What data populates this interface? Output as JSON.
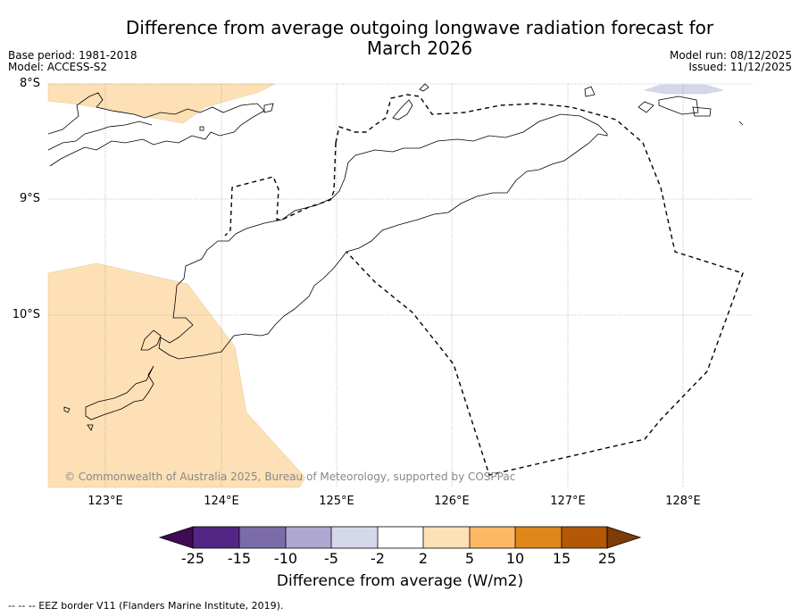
{
  "title": "Difference from average outgoing longwave radiation forecast for March 2026",
  "title_lines": [
    "Difference from average outgoing longwave radiation forecast for",
    "March 2026"
  ],
  "meta_left": [
    "Base period: 1981-2018",
    "Model: ACCESS-S2"
  ],
  "meta_right": [
    "Model run: 08/12/2025",
    "Issued: 11/12/2025"
  ],
  "map": {
    "lat_labels": [
      "8°S",
      "9°S",
      "10°S"
    ],
    "lon_labels": [
      "123°E",
      "124°E",
      "125°E",
      "126°E",
      "127°E",
      "128°E"
    ],
    "copyright": "© Commonwealth of Australia 2025, Bureau of Meteorology, supported by COSPPac",
    "colors": {
      "land_outline": "#000000",
      "anomaly_positive_light": "#fde0b6",
      "anomaly_negative_light": "#d5d7eb",
      "gridline": "#888888",
      "eez_border": "#000000"
    }
  },
  "colorbar": {
    "ticks": [
      "-25",
      "-15",
      "-10",
      "-5",
      "-2",
      "2",
      "5",
      "10",
      "15",
      "25"
    ],
    "colors": [
      "#3f0b52",
      "#532685",
      "#7b6ca9",
      "#aea8d1",
      "#d5d7eb",
      "#ffffff",
      "#fde0b6",
      "#fdb863",
      "#e0871a",
      "#b35806",
      "#7f3b08"
    ],
    "label": "Difference from average (W/m2)"
  },
  "footnote": "--  --  -- EEZ border V11 (Flanders Marine Institute, 2019)."
}
